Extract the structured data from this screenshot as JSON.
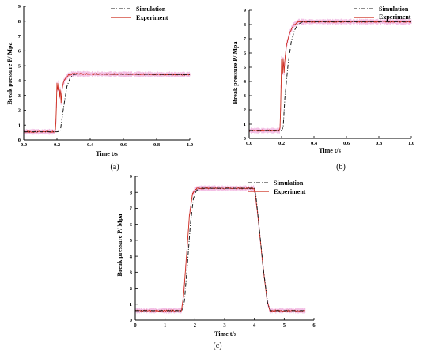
{
  "figure": {
    "panel_labels": [
      "(a)",
      "(b)",
      "(c)"
    ]
  },
  "colors": {
    "simulation": "#1a1a1a",
    "experiment": "#cc2a1a",
    "experiment_band": "#f2b8e2",
    "axis": "#000000"
  },
  "chart_data": [
    {
      "type": "line",
      "panel": "(a)",
      "xlabel": "Time t/s",
      "ylabel": "Break pressure P/ Mpa",
      "xlim": [
        0.0,
        1.0
      ],
      "ylim": [
        0,
        9
      ],
      "xticks": [
        "0.0",
        "0.2",
        "0.4",
        "0.6",
        "0.8",
        "1.0"
      ],
      "yticks": [
        "0",
        "1",
        "2",
        "3",
        "4",
        "5",
        "6",
        "7",
        "8",
        "9"
      ],
      "grid": false,
      "legend_position": "top-right",
      "series": [
        {
          "name": "Simulation",
          "style": "dash-dot",
          "x": [
            0.0,
            0.2,
            0.22,
            0.24,
            0.26,
            0.28,
            0.3,
            0.33,
            1.0
          ],
          "y": [
            0.55,
            0.55,
            0.6,
            2.2,
            3.6,
            4.2,
            4.4,
            4.45,
            4.4
          ]
        },
        {
          "name": "Experiment",
          "style": "solid",
          "x": [
            0.0,
            0.19,
            0.195,
            0.2,
            0.205,
            0.21,
            0.215,
            0.22,
            0.225,
            0.23,
            0.24,
            0.25,
            0.27,
            0.3,
            1.0
          ],
          "y": [
            0.55,
            0.55,
            1.5,
            3.8,
            3.2,
            3.9,
            2.8,
            3.6,
            2.5,
            3.4,
            3.9,
            4.1,
            4.4,
            4.45,
            4.4
          ]
        }
      ]
    },
    {
      "type": "line",
      "panel": "(b)",
      "xlabel": "Time t/s",
      "ylabel": "Break pressure P/ Mpa",
      "xlim": [
        0.0,
        1.0
      ],
      "ylim": [
        0,
        9
      ],
      "xticks": [
        "0.0",
        "0.2",
        "0.4",
        "0.6",
        "0.8",
        "1.0"
      ],
      "yticks": [
        "0",
        "1",
        "2",
        "3",
        "4",
        "5",
        "6",
        "7",
        "8",
        "9"
      ],
      "grid": false,
      "legend_position": "top-right",
      "series": [
        {
          "name": "Simulation",
          "style": "dash-dot",
          "x": [
            0.0,
            0.2,
            0.21,
            0.22,
            0.24,
            0.26,
            0.28,
            0.3,
            0.33,
            1.0
          ],
          "y": [
            0.55,
            0.55,
            0.8,
            2.8,
            5.2,
            6.8,
            7.6,
            8.0,
            8.2,
            8.2
          ]
        },
        {
          "name": "Experiment",
          "style": "solid",
          "x": [
            0.0,
            0.19,
            0.195,
            0.2,
            0.205,
            0.21,
            0.215,
            0.22,
            0.23,
            0.25,
            0.27,
            0.3,
            1.0
          ],
          "y": [
            0.55,
            0.55,
            2.5,
            5.6,
            4.2,
            5.8,
            4.5,
            5.5,
            6.5,
            7.4,
            7.9,
            8.2,
            8.2
          ]
        }
      ]
    },
    {
      "type": "line",
      "panel": "(c)",
      "xlabel": "Time t/s",
      "ylabel": "Break pressure P/ Mpa",
      "xlim": [
        0,
        6
      ],
      "ylim": [
        0,
        9
      ],
      "xticks": [
        "0",
        "1",
        "2",
        "3",
        "4",
        "5",
        "6"
      ],
      "yticks": [
        "0",
        "1",
        "2",
        "3",
        "4",
        "5",
        "6",
        "7",
        "8",
        "9"
      ],
      "grid": false,
      "legend_position": "top-right",
      "series": [
        {
          "name": "Simulation",
          "style": "dash-dot",
          "x": [
            0.0,
            1.58,
            1.65,
            1.75,
            1.85,
            1.95,
            2.05,
            2.15,
            4.0,
            4.05,
            4.15,
            4.3,
            4.45,
            4.55,
            5.7
          ],
          "y": [
            0.6,
            0.6,
            1.2,
            3.5,
            6.0,
            7.6,
            8.1,
            8.25,
            8.25,
            7.8,
            6.0,
            3.2,
            1.0,
            0.6,
            0.6
          ]
        },
        {
          "name": "Experiment",
          "style": "solid",
          "x": [
            0.0,
            1.55,
            1.62,
            1.72,
            1.82,
            1.92,
            2.02,
            2.1,
            3.98,
            4.03,
            4.13,
            4.28,
            4.43,
            4.52,
            5.7
          ],
          "y": [
            0.6,
            0.6,
            1.5,
            4.0,
            6.6,
            7.9,
            8.2,
            8.25,
            8.25,
            7.9,
            6.3,
            3.5,
            1.2,
            0.6,
            0.6
          ]
        }
      ]
    }
  ]
}
